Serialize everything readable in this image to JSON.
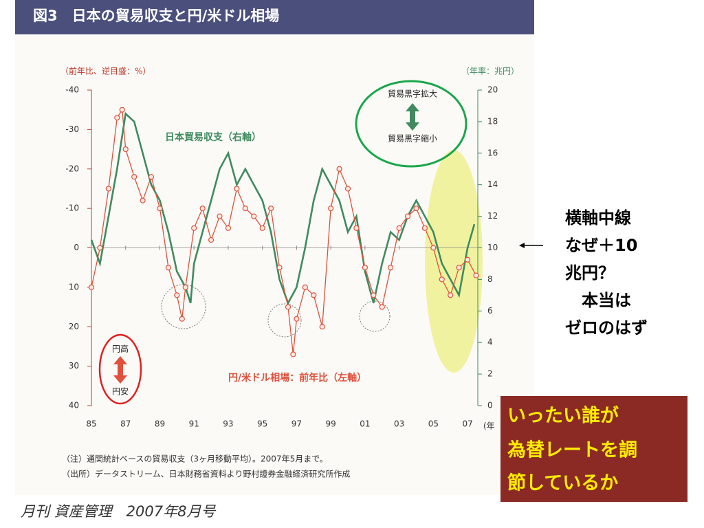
{
  "chart_data": {
    "type": "line",
    "title": "図3　日本の貿易収支と円/米ドル相場",
    "y_label": "（前年比、逆目盛：%）",
    "y2_label": "（年率：兆円）",
    "x_label": "(年",
    "xlim": [
      1985,
      2007.6
    ],
    "xticks": [
      {
        "value": 1985,
        "label": "85"
      },
      {
        "value": 1987,
        "label": "87"
      },
      {
        "value": 1989,
        "label": "89"
      },
      {
        "value": 1991,
        "label": "91"
      },
      {
        "value": 1993,
        "label": "93"
      },
      {
        "value": 1995,
        "label": "95"
      },
      {
        "value": 1997,
        "label": "97"
      },
      {
        "value": 1999,
        "label": "99"
      },
      {
        "value": 2001,
        "label": "01"
      },
      {
        "value": 2003,
        "label": "03"
      },
      {
        "value": 2005,
        "label": "05"
      },
      {
        "value": 2007,
        "label": "07"
      }
    ],
    "ylim": [
      40,
      -40
    ],
    "yticks": [
      -40,
      -30,
      -20,
      -10,
      0,
      10,
      20,
      30,
      40
    ],
    "y2lim": [
      0,
      20
    ],
    "y2ticks": [
      0,
      2,
      4,
      6,
      8,
      10,
      12,
      14,
      16,
      18,
      20
    ],
    "series": [
      {
        "name": "円/米ドル相場：前年比（左軸）",
        "color": "#e0503c",
        "axis": "y",
        "markers": true,
        "x": [
          1985.0,
          1985.5,
          1986.0,
          1986.5,
          1986.8,
          1987.0,
          1987.5,
          1988.0,
          1988.5,
          1989.0,
          1989.5,
          1990.0,
          1990.3,
          1990.5,
          1991.0,
          1991.5,
          1992.0,
          1992.5,
          1993.0,
          1993.5,
          1994.0,
          1994.5,
          1995.0,
          1995.5,
          1996.0,
          1996.5,
          1996.8,
          1997.0,
          1997.5,
          1998.0,
          1998.5,
          1999.0,
          1999.5,
          2000.0,
          2000.5,
          2001.0,
          2001.5,
          2002.0,
          2002.5,
          2003.0,
          2003.5,
          2004.0,
          2004.5,
          2005.0,
          2005.5,
          2006.0,
          2006.5,
          2007.0,
          2007.5
        ],
        "values": [
          10,
          0,
          -15,
          -33,
          -35,
          -25,
          -18,
          -12,
          -18,
          -10,
          5,
          12,
          18,
          10,
          -5,
          -10,
          -2,
          -8,
          -5,
          -15,
          -10,
          -8,
          -5,
          -10,
          5,
          15,
          27,
          18,
          10,
          12,
          20,
          -10,
          -20,
          -15,
          -5,
          5,
          12,
          15,
          5,
          -5,
          -8,
          -10,
          -5,
          0,
          8,
          12,
          5,
          3,
          7
        ]
      },
      {
        "name": "日本貿易収支（右軸）",
        "color": "#3f8a5f",
        "axis": "y2",
        "markers": false,
        "x": [
          1985.0,
          1985.5,
          1986.0,
          1986.5,
          1987.0,
          1987.5,
          1988.0,
          1988.5,
          1989.0,
          1989.5,
          1990.0,
          1990.5,
          1990.8,
          1991.0,
          1991.5,
          1992.0,
          1992.5,
          1993.0,
          1993.5,
          1994.0,
          1994.5,
          1995.0,
          1995.5,
          1996.0,
          1996.5,
          1997.0,
          1997.5,
          1998.0,
          1998.5,
          1999.0,
          1999.5,
          2000.0,
          2000.5,
          2001.0,
          2001.5,
          2002.0,
          2002.5,
          2003.0,
          2003.5,
          2004.0,
          2004.5,
          2005.0,
          2005.5,
          2006.0,
          2006.5,
          2007.0,
          2007.4
        ],
        "values": [
          10.5,
          9,
          12,
          15,
          18.5,
          18,
          16,
          14,
          13,
          11,
          8.5,
          7.5,
          6.5,
          9,
          11,
          13,
          15,
          16,
          14,
          15,
          14,
          13,
          11,
          8,
          6.5,
          7.5,
          10,
          13,
          15,
          14,
          13,
          11,
          12,
          8.5,
          6.5,
          9,
          11,
          10.5,
          12,
          13,
          12,
          11,
          9,
          8,
          7,
          10,
          11.5
        ]
      }
    ],
    "annotations": [
      "貿易黒字拡大",
      "貿易黒字縮小",
      "円高",
      "円安"
    ],
    "notes": [
      "（注）通関統計ベースの貿易収支（3ヶ月移動平均）。2007年5月まで。",
      "（出所）データストリーム、日本財務省資料より野村證券金融経済研究所作成"
    ]
  },
  "source": "月刊 資産管理　2007年8月号",
  "side_note": [
    "横軸中線",
    "なぜ＋10",
    "兆円？",
    "　本当は",
    "ゼロのはず"
  ],
  "callout": [
    "いったい誰が",
    "為替レートを調",
    "節しているか"
  ]
}
